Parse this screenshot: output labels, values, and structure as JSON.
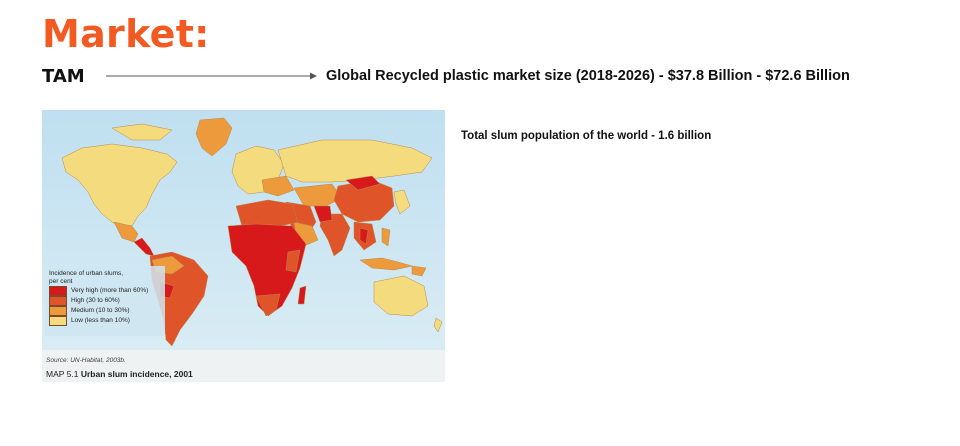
{
  "slide": {
    "title": "Market:",
    "tam_label": "TAM",
    "tam_text": "Global Recycled plastic market size (2018-2026) - $37.8 Billion - $72.6 Billion",
    "slum_text": "Total slum population of the world - 1.6 billion"
  },
  "map": {
    "legend_title_1": "Incidence of urban slums,",
    "legend_title_2": "per cent",
    "legend": [
      {
        "label": "Very high (more than 60%)",
        "color": "#d7191c"
      },
      {
        "label": "High (30 to 60%)",
        "color": "#e0542a"
      },
      {
        "label": "Medium (10 to 30%)",
        "color": "#ec9a3c"
      },
      {
        "label": "Low (less than 10%)",
        "color": "#f4dc7e"
      }
    ],
    "source": "Source: UN-Habitat, 2003b.",
    "caption_prefix": "MAP 5.1",
    "caption": "Urban slum incidence, 2001",
    "colors": {
      "ocean": "#cfe6f1",
      "very_high": "#d7191c",
      "high": "#e0542a",
      "medium": "#ec9a3c",
      "low": "#f4dc7e"
    }
  }
}
